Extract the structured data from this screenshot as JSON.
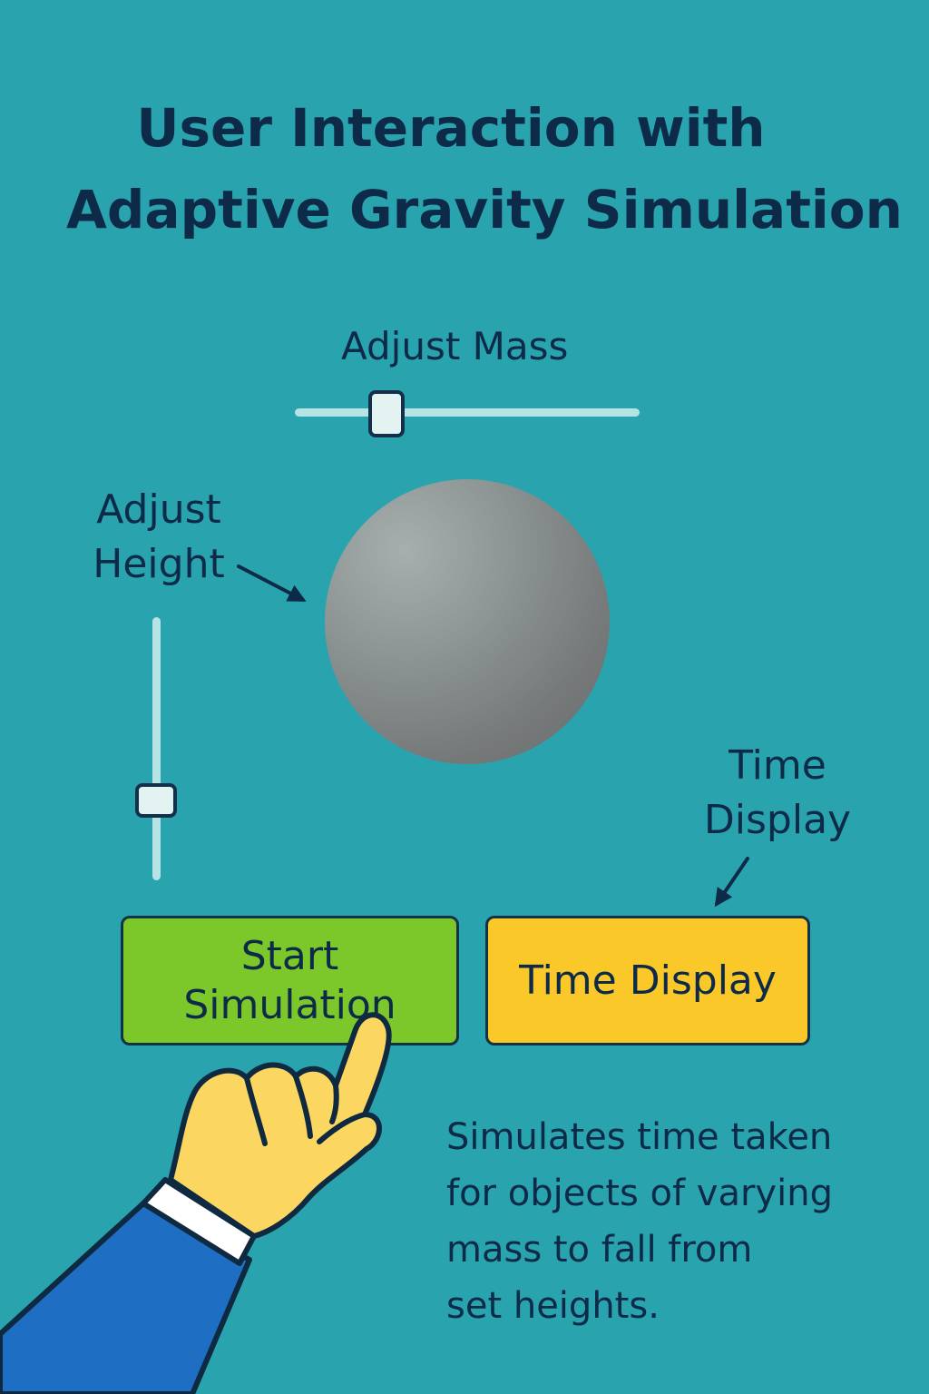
{
  "title": {
    "line1": "User Interaction with",
    "line2": "Adaptive Gravity Simulation"
  },
  "mass_slider": {
    "label": "Adjust Mass",
    "value": 0.26
  },
  "height_slider": {
    "label_line1": "Adjust",
    "label_line2": "Height",
    "value": 0.28
  },
  "time_annotation": {
    "label_line1": "Time",
    "label_line2": "Display"
  },
  "buttons": {
    "start_line1": "Start",
    "start_line2": "Simulation",
    "time_display": "Time Display"
  },
  "description": {
    "line1": "Simulates time taken",
    "line2": "for objects of varying",
    "line3": "mass to fall from",
    "line4": "set heights."
  },
  "colors": {
    "background": "#29a3ad",
    "text": "#0d2a48",
    "start_button": "#7cc82a",
    "time_button": "#fbc82a",
    "slider_track": "#b6e3e4",
    "ball": "#8d9595",
    "hand": "#fbd761",
    "sleeve": "#1e6fc4"
  },
  "icons": [
    "arrow-icon",
    "pointing-hand-icon",
    "ball-icon"
  ]
}
